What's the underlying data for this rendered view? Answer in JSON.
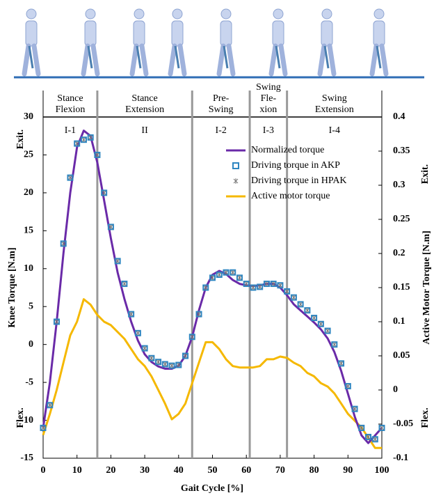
{
  "chart_data": {
    "type": "line",
    "xlabel": "Gait Cycle [%]",
    "ylabel": "Knee Torque [N.m]",
    "y2label": "Active Motor Torque [N.m]",
    "y_top_note": "Exit.",
    "y_bottom_note": "Flex.",
    "xlim": [
      0,
      100
    ],
    "xticks": [
      0,
      10,
      20,
      30,
      40,
      50,
      60,
      70,
      80,
      90,
      100
    ],
    "ylim": [
      -15,
      30
    ],
    "yticks": [
      -15,
      -10,
      -5,
      0,
      5,
      10,
      15,
      20,
      25,
      30
    ],
    "y2lim": [
      -0.1,
      0.4
    ],
    "y2ticks": [
      -0.1,
      -0.05,
      0,
      0.05,
      0.1,
      0.15,
      0.2,
      0.25,
      0.3,
      0.35,
      0.4
    ],
    "phase_boundaries": [
      16,
      44,
      61,
      72
    ],
    "phases": [
      {
        "name": [
          "Stance",
          "Flexion"
        ],
        "code": "I-1"
      },
      {
        "name": [
          "Stance",
          "Extension"
        ],
        "code": "II"
      },
      {
        "name": [
          "Pre-",
          "Swing"
        ],
        "code": "I-2"
      },
      {
        "name": [
          "Swing",
          "Fle-",
          "xion"
        ],
        "code": "I-3"
      },
      {
        "name": [
          "Swing",
          "Extension"
        ],
        "code": "I-4"
      }
    ],
    "x": [
      0,
      2,
      4,
      6,
      8,
      10,
      12,
      14,
      16,
      18,
      20,
      22,
      24,
      26,
      28,
      30,
      32,
      34,
      36,
      38,
      40,
      42,
      44,
      46,
      48,
      50,
      52,
      54,
      56,
      58,
      60,
      62,
      64,
      66,
      68,
      70,
      72,
      74,
      76,
      78,
      80,
      82,
      84,
      86,
      88,
      90,
      92,
      94,
      96,
      98,
      100
    ],
    "series": [
      {
        "name": "Normalized torque",
        "color": "#6a2aa8",
        "style": "line",
        "values": [
          -11,
          -5,
          3,
          12,
          20,
          26,
          28.2,
          27.5,
          24,
          19,
          14,
          9.5,
          6,
          3,
          0.5,
          -1.3,
          -2.3,
          -2.9,
          -3.2,
          -3.2,
          -2.8,
          -1.5,
          1,
          4.5,
          7.5,
          9.2,
          9.7,
          9.3,
          8.5,
          8,
          7.8,
          7.7,
          7.8,
          8,
          8,
          7.5,
          6.5,
          5.3,
          4.5,
          3.7,
          2.9,
          2,
          0.8,
          -1,
          -3.5,
          -6.5,
          -9.5,
          -12,
          -13,
          -12,
          -11
        ]
      },
      {
        "name": "Driving torque in AKP",
        "color": "#2e86c1",
        "style": "square",
        "values": [
          -11,
          -8,
          3,
          13.3,
          22,
          26.5,
          27,
          27.3,
          25,
          20,
          15.5,
          11,
          8,
          4,
          1.5,
          -0.5,
          -1.8,
          -2.3,
          -2.6,
          -2.8,
          -2.7,
          -1.5,
          1,
          4,
          7.5,
          8.8,
          9.2,
          9.5,
          9.5,
          8.8,
          8,
          7.5,
          7.6,
          8,
          8,
          7.8,
          7,
          6.2,
          5.3,
          4.5,
          3.5,
          2.7,
          1.8,
          0,
          -2.5,
          -5.5,
          -8.5,
          -11,
          -12.2,
          -12.5,
          -11
        ]
      },
      {
        "name": "Driving torque in HPAK",
        "color": "#777777",
        "style": "star",
        "values": [
          -11,
          -8,
          3,
          13.3,
          22,
          26.5,
          27,
          27.3,
          25,
          20,
          15.5,
          11,
          8,
          4,
          1.5,
          -0.5,
          -1.8,
          -2.3,
          -2.6,
          -2.8,
          -2.7,
          -1.5,
          1,
          4,
          7.5,
          8.8,
          9.2,
          9.5,
          9.5,
          8.8,
          8,
          7.5,
          7.6,
          8,
          8,
          7.8,
          7,
          6.2,
          5.3,
          4.5,
          3.5,
          2.7,
          1.8,
          0,
          -2.5,
          -5.5,
          -8.5,
          -11,
          -12.2,
          -12.5,
          -11
        ]
      },
      {
        "name": "Active motor torque",
        "color": "#f5b800",
        "style": "line",
        "axis": "y2",
        "values": [
          -0.066,
          -0.035,
          0,
          0.04,
          0.08,
          0.1,
          0.133,
          0.125,
          0.11,
          0.1,
          0.095,
          0.085,
          0.075,
          0.06,
          0.045,
          0.035,
          0.02,
          0,
          -0.02,
          -0.043,
          -0.035,
          -0.02,
          0.01,
          0.04,
          0.07,
          0.07,
          0.06,
          0.045,
          0.035,
          0.033,
          0.033,
          0.033,
          0.035,
          0.045,
          0.045,
          0.049,
          0.047,
          0.04,
          0.035,
          0.025,
          0.02,
          0.01,
          0.005,
          -0.005,
          -0.02,
          -0.035,
          -0.045,
          -0.055,
          -0.07,
          -0.085,
          -0.085
        ]
      }
    ]
  }
}
